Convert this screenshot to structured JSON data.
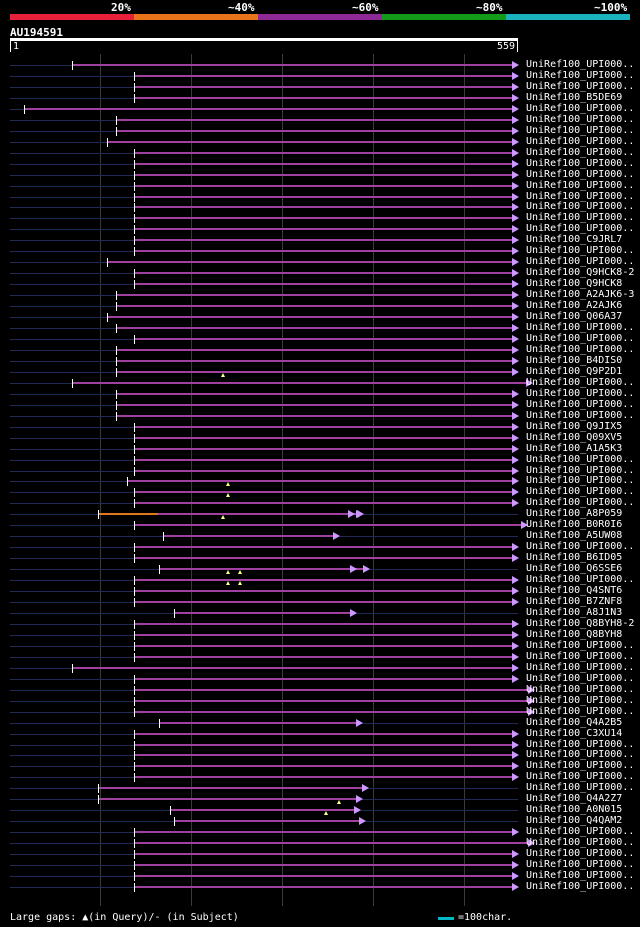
{
  "scale": {
    "labels": [
      "20%",
      "~40%",
      "~60%",
      "~80%",
      "~100%"
    ],
    "colors": [
      "#e8213a",
      "#e8741b",
      "#8e2a95",
      "#139a1a",
      "#1ab3bd"
    ]
  },
  "query": {
    "name": "AU194591",
    "start": "1",
    "end": "559",
    "length": 559
  },
  "hit_color": "#a040a0",
  "hit_color_alt": "#e07820",
  "hits": [
    {
      "label": "UniRef100_UPI000..",
      "start": 68,
      "end": 560
    },
    {
      "label": "UniRef100_UPI000..",
      "start": 136,
      "end": 560
    },
    {
      "label": "UniRef100_UPI000..",
      "start": 136,
      "end": 560
    },
    {
      "label": "UniRef100_B5DE69",
      "start": 136,
      "end": 560
    },
    {
      "label": "UniRef100_UPI000..",
      "start": 15,
      "end": 560
    },
    {
      "label": "UniRef100_UPI000..",
      "start": 117,
      "end": 560
    },
    {
      "label": "UniRef100_UPI000..",
      "start": 117,
      "end": 560
    },
    {
      "label": "UniRef100_UPI000..",
      "start": 107,
      "end": 560
    },
    {
      "label": "UniRef100_UPI000..",
      "start": 136,
      "end": 560
    },
    {
      "label": "UniRef100_UPI000..",
      "start": 136,
      "end": 560
    },
    {
      "label": "UniRef100_UPI000..",
      "start": 136,
      "end": 560
    },
    {
      "label": "UniRef100_UPI000..",
      "start": 136,
      "end": 560
    },
    {
      "label": "UniRef100_UPI000..",
      "start": 136,
      "end": 560
    },
    {
      "label": "UniRef100_UPI000..",
      "start": 136,
      "end": 560
    },
    {
      "label": "UniRef100_UPI000..",
      "start": 136,
      "end": 560
    },
    {
      "label": "UniRef100_UPI000..",
      "start": 136,
      "end": 560
    },
    {
      "label": "UniRef100_C9JRL7",
      "start": 136,
      "end": 560
    },
    {
      "label": "UniRef100_UPI000..",
      "start": 136,
      "end": 560
    },
    {
      "label": "UniRef100_UPI000..",
      "start": 107,
      "end": 560
    },
    {
      "label": "UniRef100_Q9HCK8-2",
      "start": 136,
      "end": 560
    },
    {
      "label": "UniRef100_Q9HCK8",
      "start": 136,
      "end": 560
    },
    {
      "label": "UniRef100_A2AJK6-3",
      "start": 117,
      "end": 560
    },
    {
      "label": "UniRef100_A2AJK6",
      "start": 117,
      "end": 560
    },
    {
      "label": "UniRef100_Q06A37",
      "start": 107,
      "end": 560
    },
    {
      "label": "UniRef100_UPI000..",
      "start": 117,
      "end": 560
    },
    {
      "label": "UniRef100_UPI000..",
      "start": 136,
      "end": 560
    },
    {
      "label": "UniRef100_UPI000..",
      "start": 117,
      "end": 560
    },
    {
      "label": "UniRef100_B4DIS0",
      "start": 117,
      "end": 560
    },
    {
      "label": "UniRef100_Q9P2D1",
      "start": 117,
      "end": 560
    },
    {
      "label": "UniRef100_UPI000..",
      "start": 68,
      "end": 576,
      "gaps": [
        234
      ]
    },
    {
      "label": "UniRef100_UPI000..",
      "start": 117,
      "end": 560
    },
    {
      "label": "UniRef100_UPI000..",
      "start": 117,
      "end": 560
    },
    {
      "label": "UniRef100_UPI000..",
      "start": 117,
      "end": 560
    },
    {
      "label": "UniRef100_Q9JIX5",
      "start": 136,
      "end": 560
    },
    {
      "label": "UniRef100_Q09XV5",
      "start": 136,
      "end": 560
    },
    {
      "label": "UniRef100_A1A5K3",
      "start": 136,
      "end": 560
    },
    {
      "label": "UniRef100_UPI000..",
      "start": 136,
      "end": 560
    },
    {
      "label": "UniRef100_UPI000..",
      "start": 136,
      "end": 560
    },
    {
      "label": "UniRef100_UPI000..",
      "start": 129,
      "end": 560
    },
    {
      "label": "UniRef100_UPI000..",
      "start": 136,
      "end": 560,
      "gaps": [
        240
      ]
    },
    {
      "label": "UniRef100_UPI000..",
      "start": 136,
      "end": 560,
      "gaps": [
        240
      ]
    },
    {
      "label": "UniRef100_A8P059",
      "start": 97,
      "end": 390,
      "orange": true,
      "extra_arrows": [
        380,
        388
      ]
    },
    {
      "label": "UniRef100_B0R0I6",
      "start": 136,
      "end": 570,
      "gaps": [
        234
      ]
    },
    {
      "label": "UniRef100_A5UW08",
      "start": 168,
      "end": 363
    },
    {
      "label": "UniRef100_UPI000..",
      "start": 136,
      "end": 560
    },
    {
      "label": "UniRef100_B6ID05",
      "start": 136,
      "end": 560
    },
    {
      "label": "UniRef100_Q6SSE6",
      "start": 164,
      "end": 396,
      "extra_arrows": [
        382
      ]
    },
    {
      "label": "UniRef100_UPI000..",
      "start": 136,
      "end": 560,
      "gaps": [
        240,
        253
      ]
    },
    {
      "label": "UniRef100_Q4SNT6",
      "start": 136,
      "end": 560,
      "gaps": [
        240,
        253
      ]
    },
    {
      "label": "UniRef100_B7ZNF8",
      "start": 136,
      "end": 560
    },
    {
      "label": "UniRef100_A8J1N3",
      "start": 180,
      "end": 382
    },
    {
      "label": "UniRef100_Q8BYH8-2",
      "start": 136,
      "end": 560
    },
    {
      "label": "UniRef100_Q8BYH8",
      "start": 136,
      "end": 560
    },
    {
      "label": "UniRef100_UPI000..",
      "start": 136,
      "end": 560
    },
    {
      "label": "UniRef100_UPI000..",
      "start": 136,
      "end": 560
    },
    {
      "label": "UniRef100_UPI000..",
      "start": 68,
      "end": 560
    },
    {
      "label": "UniRef100_UPI000..",
      "start": 136,
      "end": 560
    },
    {
      "label": "UniRef100_UPI000..",
      "start": 136,
      "end": 578
    },
    {
      "label": "UniRef100_UPI000..",
      "start": 136,
      "end": 578
    },
    {
      "label": "UniRef100_UPI000..",
      "start": 136,
      "end": 578
    },
    {
      "label": "UniRef100_Q4A2B5",
      "start": 164,
      "end": 388
    },
    {
      "label": "UniRef100_C3XU14",
      "start": 136,
      "end": 560
    },
    {
      "label": "UniRef100_UPI000..",
      "start": 136,
      "end": 560
    },
    {
      "label": "UniRef100_UPI000..",
      "start": 136,
      "end": 560
    },
    {
      "label": "UniRef100_UPI000..",
      "start": 136,
      "end": 560
    },
    {
      "label": "UniRef100_UPI000..",
      "start": 136,
      "end": 560
    },
    {
      "label": "UniRef100_UPI000..",
      "start": 97,
      "end": 395
    },
    {
      "label": "UniRef100_Q4A2Z7",
      "start": 97,
      "end": 388
    },
    {
      "label": "UniRef100_A0N015",
      "start": 176,
      "end": 386,
      "gaps": [
        362
      ]
    },
    {
      "label": "UniRef100_Q4QAM2",
      "start": 180,
      "end": 392,
      "gaps": [
        348
      ]
    },
    {
      "label": "UniRef100_UPI000..",
      "start": 136,
      "end": 560
    },
    {
      "label": "UniRef100_UPI000..",
      "start": 136,
      "end": 578
    },
    {
      "label": "UniRef100_UPI000..",
      "start": 136,
      "end": 560
    },
    {
      "label": "UniRef100_UPI000..",
      "start": 136,
      "end": 560
    },
    {
      "label": "UniRef100_UPI000..",
      "start": 136,
      "end": 560
    },
    {
      "label": "UniRef100_UPI000..",
      "start": 136,
      "end": 560
    }
  ],
  "footer": {
    "legend_text": "Large gaps: ▲(in Query)/- (in Subject)",
    "key_label": "=100char."
  }
}
